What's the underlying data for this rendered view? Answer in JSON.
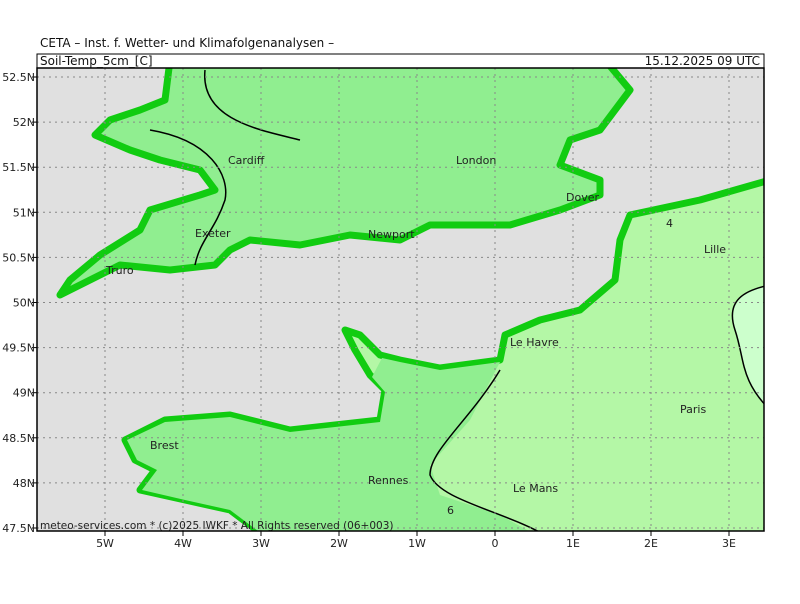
{
  "header": {
    "title": "CETA – Inst. f. Wetter- und Klimafolgenanalysen –",
    "variable": "Soil-Temp_5cm_[C]",
    "date": "15.12.2025 09 UTC"
  },
  "axes": {
    "x_labels": [
      "5W",
      "4W",
      "3W",
      "2W",
      "1W",
      "0",
      "1E",
      "2E",
      "3E"
    ],
    "y_labels": [
      "52.5N",
      "52N",
      "51.5N",
      "51N",
      "50.5N",
      "50N",
      "49.5N",
      "49N",
      "48.5N",
      "48N",
      "47.5N"
    ]
  },
  "places": [
    "Cardiff",
    "London",
    "Dover",
    "Exeter",
    "Newport",
    "Truro",
    "Lille",
    "Le Havre",
    "Paris",
    "Brest",
    "Rennes",
    "Le Mans"
  ],
  "contour_labels": [
    "4",
    "6"
  ],
  "footer": "meteo-services.com * (c)2025 IWKF * All Rights reserved (06+003)"
}
